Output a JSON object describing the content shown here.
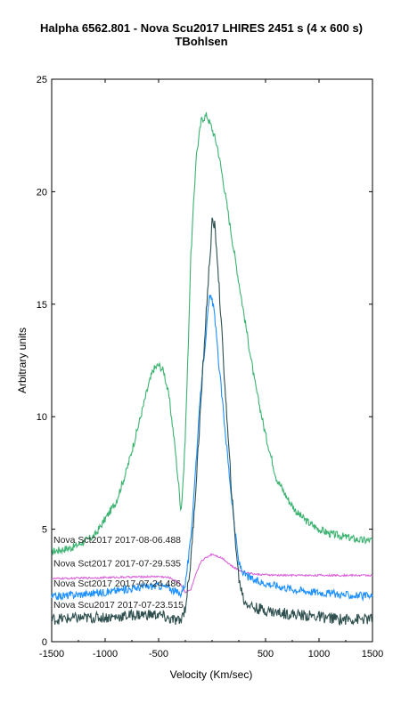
{
  "chart_data": {
    "type": "line",
    "title": "Halpha 6562.801 - Nova Scu2017 LHIRES   2451 s (4 x 600 s)",
    "subtitle": "TBohlsen",
    "xlabel": "Velocity (Km/sec)",
    "ylabel": "Arbitrary units",
    "xlim": [
      -1500,
      1500
    ],
    "ylim": [
      0,
      25
    ],
    "x_ticks": [
      -1500,
      -1000,
      -500,
      500,
      1000,
      1500
    ],
    "x_tick_labels": [
      "-1500",
      "-1000",
      "-500",
      "500",
      "1000",
      "1500"
    ],
    "y_ticks": [
      0,
      5,
      10,
      15,
      20,
      25
    ],
    "y_tick_labels": [
      "0",
      "5",
      "10",
      "15",
      "20",
      "25"
    ],
    "grid": false,
    "legend": "inline labels at left",
    "series": [
      {
        "name": "Nova Sct2017  2017-08-06.488",
        "color": "#3cb371",
        "x": [
          -1500,
          -1300,
          -1100,
          -900,
          -800,
          -700,
          -600,
          -550,
          -500,
          -450,
          -400,
          -350,
          -310,
          -290,
          -260,
          -230,
          -200,
          -150,
          -100,
          -50,
          0,
          50,
          100,
          200,
          300,
          400,
          500,
          600,
          700,
          800,
          900,
          1000,
          1100,
          1200,
          1300,
          1400,
          1500
        ],
        "values": [
          4.0,
          4.2,
          4.7,
          6.2,
          7.6,
          9.4,
          11.3,
          12.1,
          12.3,
          12.0,
          10.8,
          8.8,
          6.8,
          5.8,
          8.0,
          12.0,
          17.0,
          21.5,
          23.2,
          23.4,
          22.8,
          22.0,
          20.6,
          17.5,
          14.5,
          11.5,
          9.2,
          7.3,
          6.4,
          5.7,
          5.3,
          5.0,
          4.8,
          4.7,
          4.6,
          4.5,
          4.5
        ],
        "label_y": 4.4
      },
      {
        "name": "Nova Sct2017  2017-07-29.535",
        "color": "#d966d9",
        "x": [
          -1500,
          -1000,
          -500,
          -400,
          -300,
          -250,
          -200,
          -150,
          -100,
          0,
          50,
          100,
          150,
          200,
          300,
          400,
          600,
          800,
          1000,
          1200,
          1500
        ],
        "values": [
          2.8,
          2.85,
          2.9,
          2.85,
          2.6,
          2.2,
          2.3,
          3.0,
          3.6,
          3.9,
          3.8,
          3.7,
          3.5,
          3.3,
          3.1,
          3.0,
          2.95,
          2.95,
          2.95,
          2.95,
          2.95
        ],
        "label_y": 3.35
      },
      {
        "name": "Nova Sct2017  2017-07-24.486",
        "color": "#1e90ff",
        "x": [
          -1500,
          -1000,
          -700,
          -500,
          -400,
          -300,
          -250,
          -200,
          -150,
          -100,
          -50,
          -25,
          0,
          25,
          50,
          100,
          150,
          200,
          250,
          300,
          400,
          600,
          800,
          1000,
          1200,
          1500
        ],
        "values": [
          2.0,
          2.2,
          2.4,
          2.5,
          2.4,
          2.1,
          2.6,
          4.5,
          8.0,
          11.5,
          14.0,
          15.3,
          15.2,
          14.5,
          13.0,
          10.5,
          8.0,
          5.5,
          3.5,
          3.0,
          2.7,
          2.5,
          2.3,
          2.2,
          2.1,
          2.0
        ],
        "label_y": 2.45
      },
      {
        "name": "Nova Scu2017  2017-07-23.515",
        "color": "#2f4f4f",
        "x": [
          -1500,
          -1200,
          -900,
          -700,
          -500,
          -400,
          -300,
          -250,
          -200,
          -150,
          -100,
          -50,
          0,
          25,
          50,
          100,
          150,
          200,
          250,
          300,
          400,
          600,
          800,
          1000,
          1200,
          1500
        ],
        "values": [
          1.0,
          1.05,
          1.1,
          1.2,
          1.2,
          1.0,
          0.9,
          1.5,
          3.5,
          7.0,
          11.0,
          15.0,
          18.6,
          18.5,
          17.0,
          13.0,
          9.0,
          5.5,
          2.8,
          1.8,
          1.5,
          1.3,
          1.2,
          1.1,
          1.0,
          1.0
        ],
        "label_y": 1.5
      }
    ]
  }
}
